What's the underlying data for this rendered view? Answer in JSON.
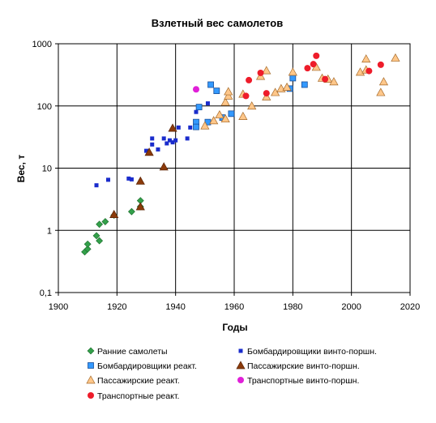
{
  "chart_data": {
    "type": "scatter",
    "title": "Взлетный вес самолетов",
    "xlabel": "Годы",
    "ylabel": "Вес, т",
    "xlim": [
      1900,
      2020
    ],
    "ylim": [
      0.1,
      1000
    ],
    "y_scale": "log",
    "grid": true,
    "legend_position": "bottom",
    "x_ticks": [
      "1900",
      "1920",
      "1940",
      "1960",
      "1980",
      "2000",
      "2020"
    ],
    "y_ticks": [
      {
        "value": 0.1,
        "label": "0,1"
      },
      {
        "value": 1,
        "label": "1"
      },
      {
        "value": 10,
        "label": "10"
      },
      {
        "value": 100,
        "label": "100"
      },
      {
        "value": 1000,
        "label": "1000"
      }
    ],
    "series": [
      {
        "name": "Ранние самолеты",
        "marker": "diamond",
        "color": "#33a04a",
        "points": [
          [
            1909,
            0.45
          ],
          [
            1910,
            0.5
          ],
          [
            1910,
            0.6
          ],
          [
            1913,
            0.82
          ],
          [
            1914,
            0.68
          ],
          [
            1914,
            1.25
          ],
          [
            1916,
            1.38
          ],
          [
            1919,
            1.75
          ],
          [
            1925,
            2.0
          ],
          [
            1928,
            2.4
          ],
          [
            1928,
            3.0
          ]
        ]
      },
      {
        "name": "Бомбардировщики винто-поршн.",
        "marker": "small-square",
        "color": "#1a2ccc",
        "points": [
          [
            1913,
            5.3
          ],
          [
            1917,
            6.5
          ],
          [
            1924,
            6.8
          ],
          [
            1925,
            6.6
          ],
          [
            1930,
            19
          ],
          [
            1932,
            24
          ],
          [
            1932,
            30
          ],
          [
            1934,
            20
          ],
          [
            1936,
            30
          ],
          [
            1937,
            25
          ],
          [
            1938,
            28
          ],
          [
            1939,
            26
          ],
          [
            1940,
            28
          ],
          [
            1941,
            45
          ],
          [
            1944,
            30
          ],
          [
            1945,
            45
          ],
          [
            1947,
            80
          ],
          [
            1951,
            110
          ]
        ]
      },
      {
        "name": "Бомбардировщики реакт.",
        "marker": "square",
        "color": "#3399ff",
        "points": [
          [
            1947,
            55
          ],
          [
            1947,
            46
          ],
          [
            1948,
            96
          ],
          [
            1951,
            55
          ],
          [
            1952,
            220
          ],
          [
            1954,
            175
          ],
          [
            1956,
            65
          ],
          [
            1959,
            75
          ],
          [
            1979,
            190
          ],
          [
            1980,
            280
          ],
          [
            1984,
            220
          ]
        ]
      },
      {
        "name": "Пассажирские винто-поршн.",
        "marker": "triangle",
        "color": "#8b3a0a",
        "points": [
          [
            1919,
            1.8
          ],
          [
            1928,
            6.2
          ],
          [
            1928,
            2.4
          ],
          [
            1931,
            18
          ],
          [
            1936,
            10.5
          ],
          [
            1939,
            44
          ]
        ]
      },
      {
        "name": "Пассажирские реакт.",
        "marker": "triangle",
        "color": "#ffc78a",
        "points": [
          [
            1950,
            48
          ],
          [
            1953,
            58
          ],
          [
            1955,
            72
          ],
          [
            1957,
            62
          ],
          [
            1957,
            115
          ],
          [
            1958,
            145
          ],
          [
            1958,
            170
          ],
          [
            1963,
            68
          ],
          [
            1963,
            155
          ],
          [
            1966,
            100
          ],
          [
            1969,
            300
          ],
          [
            1971,
            370
          ],
          [
            1971,
            140
          ],
          [
            1974,
            165
          ],
          [
            1976,
            190
          ],
          [
            1978,
            200
          ],
          [
            1980,
            350
          ],
          [
            1988,
            420
          ],
          [
            1990,
            280
          ],
          [
            1992,
            270
          ],
          [
            1994,
            245
          ],
          [
            2003,
            350
          ],
          [
            2005,
            570
          ],
          [
            2005,
            380
          ],
          [
            2010,
            165
          ],
          [
            2011,
            245
          ],
          [
            2015,
            590
          ]
        ]
      },
      {
        "name": "Транспортные винто-поршн.",
        "marker": "circle",
        "color": "#e020d8",
        "points": [
          [
            1947,
            185
          ]
        ]
      },
      {
        "name": "Транспортные реакт.",
        "marker": "circle",
        "color": "#ee1c2a",
        "points": [
          [
            1964,
            145
          ],
          [
            1965,
            260
          ],
          [
            1969,
            340
          ],
          [
            1971,
            160
          ],
          [
            1985,
            405
          ],
          [
            1987,
            470
          ],
          [
            1988,
            640
          ],
          [
            1991,
            270
          ],
          [
            2006,
            365
          ],
          [
            2010,
            460
          ]
        ]
      }
    ]
  }
}
